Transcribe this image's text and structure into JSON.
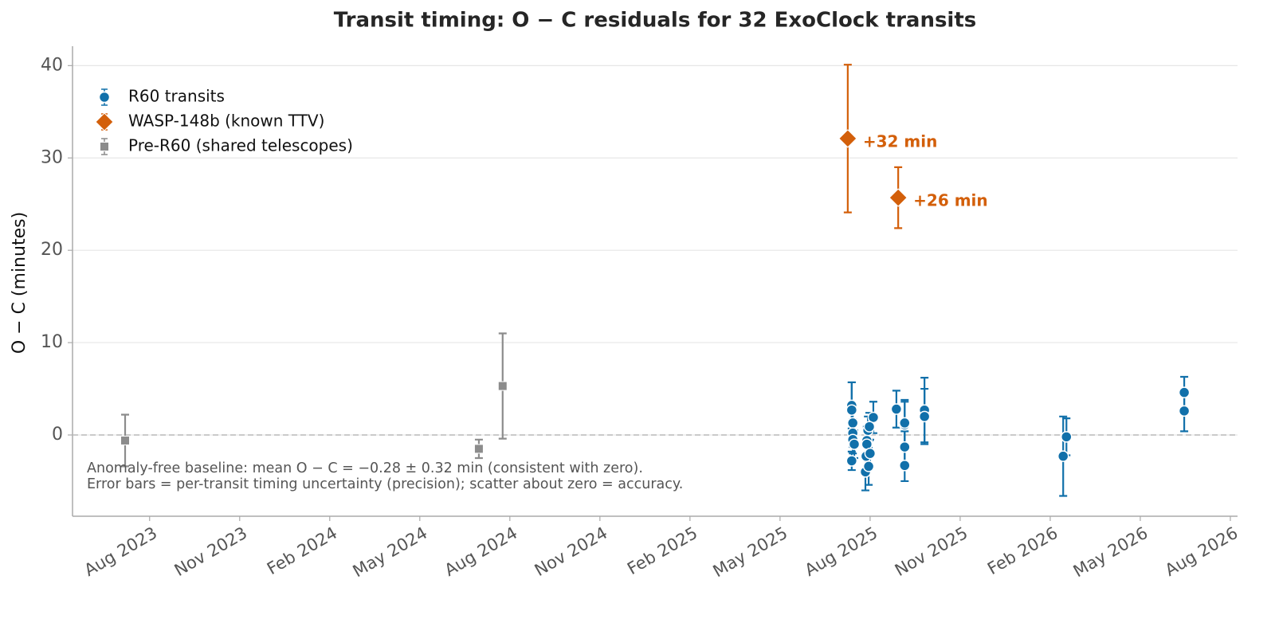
{
  "chart_data": {
    "type": "scatter",
    "title": "Transit timing: O − C residuals for 32 ExoClock transits",
    "y_label": "O − C  (minutes)",
    "annotations": [
      "Anomaly-free baseline: mean O − C = −0.28 ± 0.32 min (consistent with zero).",
      "Error bars = per-transit timing uncertainty (precision); scatter about zero = accuracy."
    ],
    "xlim": [
      2023.369,
      2026.603
    ],
    "xticks": [
      {
        "value": 2023.583,
        "label": "Aug 2023"
      },
      {
        "value": 2023.833,
        "label": "Nov 2023"
      },
      {
        "value": 2024.083,
        "label": "Feb 2024"
      },
      {
        "value": 2024.333,
        "label": "May 2024"
      },
      {
        "value": 2024.583,
        "label": "Aug 2024"
      },
      {
        "value": 2024.833,
        "label": "Nov 2024"
      },
      {
        "value": 2025.083,
        "label": "Feb 2025"
      },
      {
        "value": 2025.333,
        "label": "May 2025"
      },
      {
        "value": 2025.583,
        "label": "Aug 2025"
      },
      {
        "value": 2025.833,
        "label": "Nov 2025"
      },
      {
        "value": 2026.083,
        "label": "Feb 2026"
      },
      {
        "value": 2026.333,
        "label": "May 2026"
      },
      {
        "value": 2026.583,
        "label": "Aug 2026"
      }
    ],
    "ylim": [
      -8.8,
      42.1
    ],
    "yticks": [
      0,
      10,
      20,
      30,
      40
    ],
    "grid": true,
    "reference_line": 0,
    "legend": "upper left",
    "series": [
      {
        "name": "R60 transits",
        "color": "#1170aa",
        "marker": "circle",
        "x": [
          2025.532,
          2025.532,
          2025.535,
          2025.535,
          2025.535,
          2025.539,
          2025.532,
          2025.592,
          2025.577,
          2025.581,
          2025.574,
          2025.574,
          2025.572,
          2025.57,
          2025.579,
          2025.583,
          2025.656,
          2025.679,
          2025.679,
          2025.679,
          2025.679,
          2025.734,
          2025.734,
          2026.119,
          2026.128,
          2026.455,
          2026.455
        ],
        "values": [
          3.2,
          2.7,
          1.3,
          0.2,
          -0.5,
          -1.0,
          -2.8,
          1.9,
          0.5,
          0.9,
          -0.6,
          -1.0,
          -2.3,
          -4.0,
          -3.4,
          -2.0,
          2.8,
          1.1,
          1.3,
          -1.3,
          -3.3,
          2.7,
          2.0,
          -2.3,
          -0.2,
          4.6,
          2.6
        ],
        "errors": [
          2.5,
          3.0,
          1.5,
          1.5,
          1.5,
          1.5,
          1.0,
          1.7,
          1.5,
          1.5,
          1.5,
          1.5,
          1.5,
          2.0,
          2.0,
          1.5,
          2.0,
          2.5,
          2.5,
          1.7,
          1.7,
          3.5,
          3.0,
          4.3,
          2.0,
          1.7,
          2.2
        ]
      },
      {
        "name": "WASP-148b (known TTV)",
        "color": "#d35f0a",
        "marker": "diamond",
        "x": [
          2025.521,
          2025.661
        ],
        "values": [
          32.1,
          25.7
        ],
        "errors": [
          8.0,
          3.3
        ],
        "value_labels": [
          "+32 min",
          "+26 min"
        ]
      },
      {
        "name": "Pre-R60 (shared telescopes)",
        "color": "#8c8c8c",
        "marker": "square",
        "x": [
          2023.515,
          2024.497,
          2024.563
        ],
        "values": [
          -0.6,
          -1.5,
          5.3
        ],
        "errors": [
          2.8,
          1.0,
          5.7
        ]
      }
    ]
  }
}
